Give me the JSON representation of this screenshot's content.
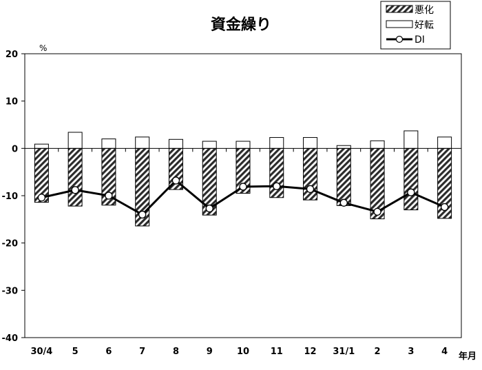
{
  "chart_data": {
    "type": "bar",
    "title": "資金繰り",
    "ylabel": "%",
    "xunit": "年月",
    "ylim": [
      -40,
      20
    ],
    "yticks": [
      20,
      10,
      0,
      -10,
      -20,
      -30,
      -40
    ],
    "grid": false,
    "legend": {
      "position": "top-right"
    },
    "categories": [
      "30/4",
      "5",
      "6",
      "7",
      "8",
      "9",
      "10",
      "11",
      "12",
      "31/1",
      "2",
      "3",
      "4"
    ],
    "series": [
      {
        "name": "悪化",
        "type": "bar",
        "pattern": "diagonal-hatch",
        "values": [
          -11.4,
          -12.2,
          -12.0,
          -16.4,
          -8.7,
          -14.1,
          -9.5,
          -10.4,
          -10.9,
          -12.1,
          -14.9,
          -13.0,
          -14.8
        ]
      },
      {
        "name": "好転",
        "type": "bar",
        "color": "#ffffff",
        "values": [
          0.9,
          3.4,
          2.0,
          2.4,
          1.9,
          1.5,
          1.5,
          2.3,
          2.3,
          0.6,
          1.6,
          3.7,
          2.4
        ]
      },
      {
        "name": "DI",
        "type": "line",
        "marker": "circle",
        "color": "#000000",
        "values": [
          -10.4,
          -8.8,
          -10.0,
          -14.0,
          -6.8,
          -12.7,
          -8.1,
          -8.0,
          -8.6,
          -11.5,
          -13.4,
          -9.3,
          -12.4
        ]
      }
    ]
  }
}
